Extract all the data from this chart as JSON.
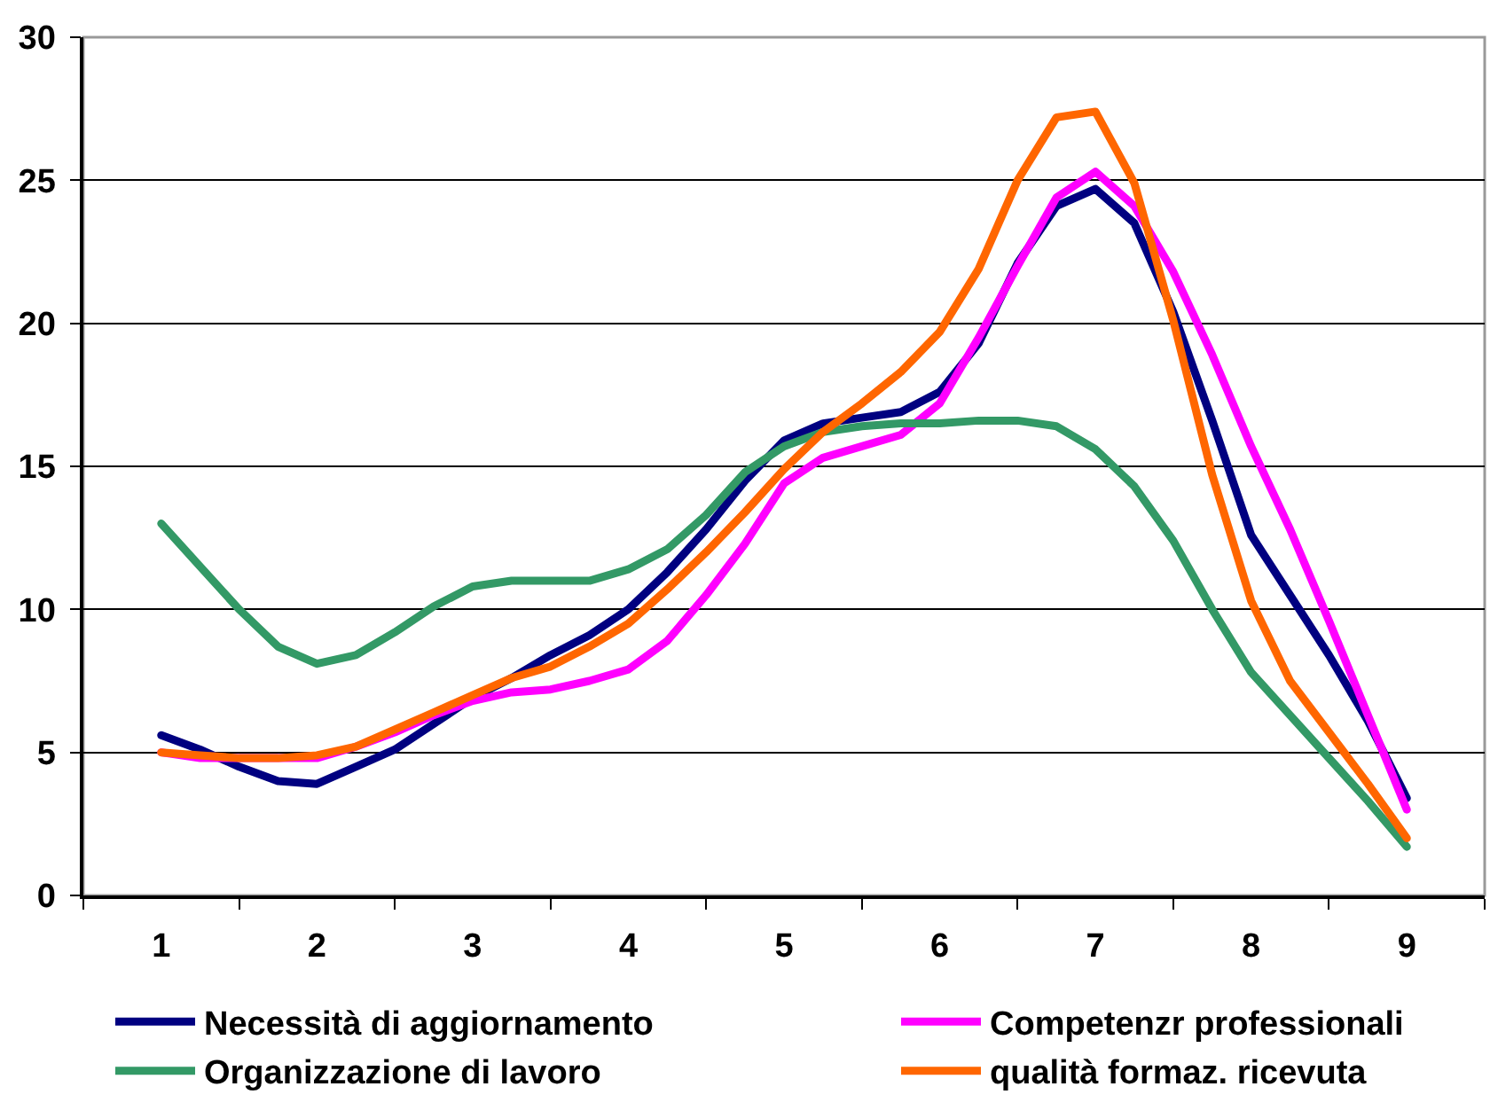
{
  "chart_data": {
    "type": "line",
    "x": [
      1,
      1.25,
      1.5,
      1.75,
      2,
      2.25,
      2.5,
      2.75,
      3,
      3.25,
      3.5,
      3.75,
      4,
      4.25,
      4.5,
      4.75,
      5,
      5.25,
      5.5,
      5.75,
      6,
      6.25,
      6.5,
      6.75,
      7,
      7.25,
      7.5,
      7.75,
      8,
      8.25,
      8.5,
      8.75,
      9
    ],
    "series": [
      {
        "name": "Necessità di aggiornamento",
        "color": "#000080",
        "values": [
          5.6,
          5.1,
          4.5,
          4.0,
          3.9,
          4.5,
          5.1,
          6.0,
          6.9,
          7.6,
          8.4,
          9.1,
          10.0,
          11.3,
          12.8,
          14.5,
          15.9,
          16.5,
          16.7,
          16.9,
          17.6,
          19.3,
          22.1,
          24.1,
          24.7,
          23.5,
          20.4,
          16.6,
          12.6,
          10.5,
          8.4,
          6.1,
          3.4
        ]
      },
      {
        "name": "Competenzr professionali",
        "color": "#ff00ff",
        "values": [
          5.0,
          4.8,
          4.8,
          4.8,
          4.8,
          5.2,
          5.7,
          6.3,
          6.8,
          7.1,
          7.2,
          7.5,
          7.9,
          8.9,
          10.5,
          12.3,
          14.4,
          15.3,
          15.7,
          16.1,
          17.2,
          19.5,
          22.0,
          24.4,
          25.3,
          24.1,
          21.8,
          18.9,
          15.7,
          12.8,
          9.6,
          6.3,
          3.0
        ]
      },
      {
        "name": "Organizzazione di lavoro",
        "color": "#339966",
        "values": [
          13.0,
          11.5,
          10.0,
          8.7,
          8.1,
          8.4,
          9.2,
          10.1,
          10.8,
          11.0,
          11.0,
          11.0,
          11.4,
          12.1,
          13.3,
          14.8,
          15.7,
          16.2,
          16.4,
          16.5,
          16.5,
          16.6,
          16.6,
          16.4,
          15.6,
          14.3,
          12.4,
          10.0,
          7.8,
          6.3,
          4.8,
          3.3,
          1.7
        ]
      },
      {
        "name": "qualità formaz. ricevuta",
        "color": "#ff6600",
        "values": [
          5.0,
          4.9,
          4.8,
          4.8,
          4.9,
          5.2,
          5.8,
          6.4,
          7.0,
          7.6,
          8.0,
          8.7,
          9.5,
          10.7,
          12.0,
          13.4,
          14.9,
          16.2,
          17.2,
          18.3,
          19.7,
          21.9,
          25.0,
          27.2,
          27.4,
          24.9,
          20.1,
          14.7,
          10.3,
          7.5,
          5.7,
          3.9,
          2.0
        ]
      }
    ],
    "xlim": [
      0.5,
      9.5
    ],
    "xticks": [
      1,
      2,
      3,
      4,
      5,
      6,
      7,
      8,
      9
    ],
    "ylim": [
      0,
      30
    ],
    "yticks": [
      0,
      5,
      10,
      15,
      20,
      25,
      30
    ],
    "grid": "y",
    "legend": "bottom",
    "marker": "none",
    "line_style": "solid"
  }
}
